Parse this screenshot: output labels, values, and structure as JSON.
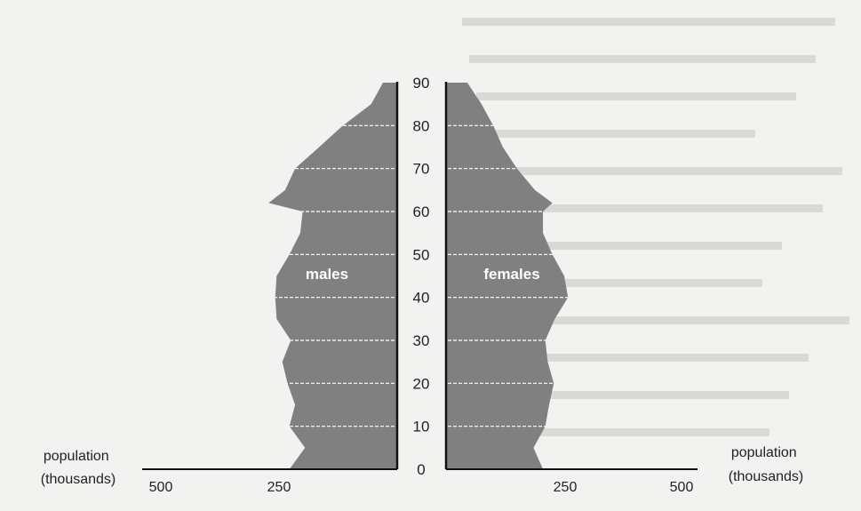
{
  "chart_data": {
    "type": "area",
    "title": "",
    "series": [
      {
        "name": "males",
        "ages": [
          0,
          5,
          10,
          15,
          20,
          25,
          30,
          35,
          40,
          45,
          50,
          55,
          60,
          62,
          65,
          70,
          75,
          80,
          85,
          90
        ],
        "values": [
          228,
          195,
          228,
          216,
          232,
          243,
          225,
          255,
          258,
          255,
          228,
          205,
          200,
          272,
          237,
          216,
          165,
          115,
          55,
          30
        ]
      },
      {
        "name": "females",
        "ages": [
          0,
          5,
          10,
          15,
          20,
          25,
          30,
          35,
          40,
          45,
          50,
          55,
          60,
          62,
          65,
          70,
          75,
          80,
          85,
          90
        ],
        "values": [
          205,
          185,
          210,
          218,
          228,
          215,
          210,
          230,
          258,
          250,
          225,
          205,
          205,
          225,
          188,
          150,
          120,
          100,
          75,
          45
        ]
      }
    ],
    "y_ticks": [
      "0",
      "10",
      "20",
      "30",
      "40",
      "50",
      "60",
      "70",
      "80",
      "90"
    ],
    "x_ticks_left": [
      "500",
      "250"
    ],
    "x_ticks_right": [
      "250",
      "500"
    ],
    "xlabel_left": "population (thousands)",
    "xlabel_right": "population (thousands)",
    "xlim": [
      0,
      500
    ],
    "ylim": [
      0,
      90
    ],
    "fill_color": "#808080",
    "grid_color": "#ffffff"
  }
}
